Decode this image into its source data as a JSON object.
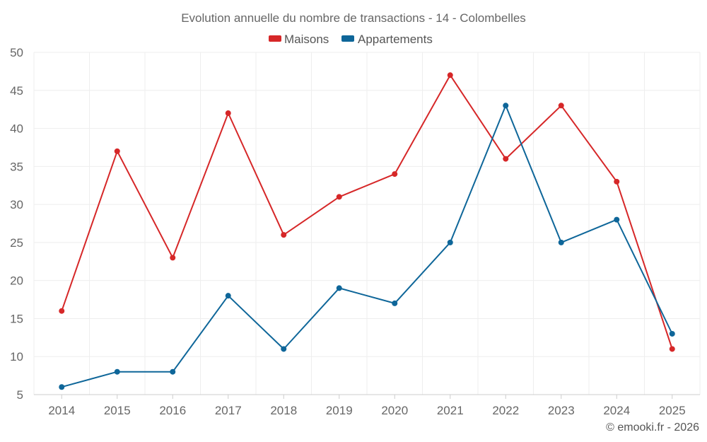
{
  "chart_data": {
    "type": "line",
    "title": "Evolution annuelle du nombre de transactions - 14 - Colombelles",
    "categories": [
      "2014",
      "2015",
      "2016",
      "2017",
      "2018",
      "2019",
      "2020",
      "2021",
      "2022",
      "2023",
      "2024",
      "2025"
    ],
    "series": [
      {
        "name": "Maisons",
        "color": "#d62728",
        "values": [
          16,
          37,
          23,
          42,
          26,
          31,
          34,
          47,
          36,
          43,
          33,
          11
        ]
      },
      {
        "name": "Appartements",
        "color": "#0e6699",
        "values": [
          6,
          8,
          8,
          18,
          11,
          19,
          17,
          25,
          43,
          25,
          28,
          13
        ]
      }
    ],
    "ylim": [
      5,
      50
    ],
    "yticks": [
      "5",
      "10",
      "15",
      "20",
      "25",
      "30",
      "35",
      "40",
      "45",
      "50"
    ],
    "xlabel": "",
    "ylabel": "",
    "grid": true,
    "legend": "top-center"
  },
  "credit": "© emooki.fr - 2026"
}
